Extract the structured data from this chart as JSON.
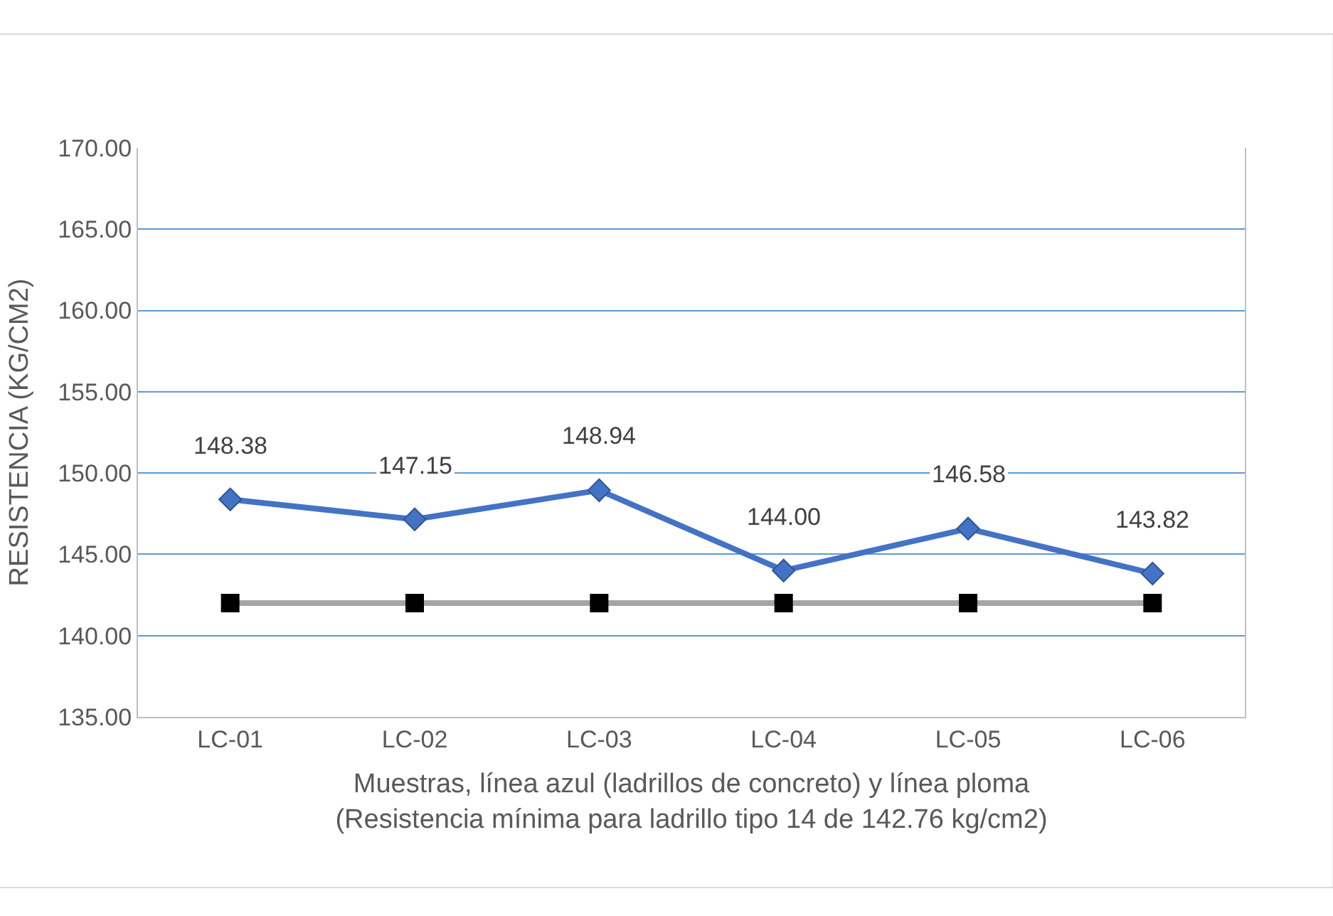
{
  "chart_data": {
    "type": "line",
    "xlabel": "Muestras, línea azul (ladrillos de concreto) y línea ploma\n(Resistencia mínima para ladrillo tipo 14 de 142.76 kg/cm2)",
    "ylabel": "RESISTENCIA (KG/CM2)",
    "categories": [
      "LC-01",
      "LC-02",
      "LC-03",
      "LC-04",
      "LC-05",
      "LC-06"
    ],
    "series": [
      {
        "color": "#4472c4",
        "marker": "diamond",
        "values": [
          148.38,
          147.15,
          148.94,
          144.0,
          146.58,
          143.82
        ],
        "value_labels": [
          "148.38",
          "147.15",
          "148.94",
          "144.00",
          "146.58",
          "143.82"
        ]
      },
      {
        "color": "#a5a5a5",
        "marker": "square",
        "values": [
          142,
          142,
          142,
          142,
          142,
          142
        ]
      }
    ],
    "ylim": [
      135,
      170
    ],
    "yticks": [
      {
        "value": 135,
        "label": "135.00"
      },
      {
        "value": 140,
        "label": "140.00"
      },
      {
        "value": 145,
        "label": "145.00"
      },
      {
        "value": 150,
        "label": "150.00"
      },
      {
        "value": 155,
        "label": "155.00"
      },
      {
        "value": 160,
        "label": "160.00"
      },
      {
        "value": 165,
        "label": "165.00"
      },
      {
        "value": 170,
        "label": "170.00"
      }
    ],
    "grid": "y",
    "legend": false
  }
}
